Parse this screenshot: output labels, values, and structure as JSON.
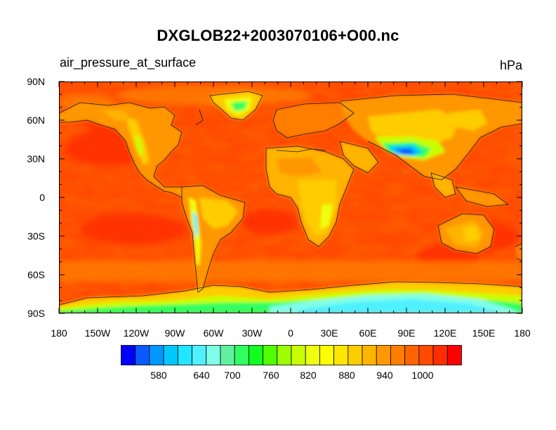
{
  "title": "DXGLOB22+2003070106+O00.nc",
  "left_subtitle": "air_pressure_at_surface",
  "right_subtitle": "hPa",
  "y_tick_labels": [
    "90N",
    "60N",
    "30N",
    "0",
    "30S",
    "60S",
    "90S"
  ],
  "x_tick_labels": [
    "180",
    "150W",
    "120W",
    "90W",
    "60W",
    "30W",
    "0",
    "30E",
    "60E",
    "90E",
    "120E",
    "150E",
    "180"
  ],
  "colorbar": {
    "labels": [
      "580",
      "640",
      "700",
      "760",
      "820",
      "880",
      "940",
      "1000"
    ],
    "colors": [
      "#0000ff",
      "#0a5aff",
      "#0098ff",
      "#00c8ff",
      "#20e6ff",
      "#50f0ff",
      "#80ffe8",
      "#60f0a0",
      "#30ff60",
      "#10ff20",
      "#50ff00",
      "#9aff00",
      "#c8ff00",
      "#eeff10",
      "#ffff00",
      "#ffe600",
      "#ffcc00",
      "#ffb400",
      "#ff9800",
      "#ff7e00",
      "#ff6400",
      "#ff4a00",
      "#ff2e00",
      "#ff0000"
    ]
  },
  "chart_data": {
    "type": "heatmap",
    "title": "DXGLOB22+2003070106+O00.nc",
    "variable": "air_pressure_at_surface",
    "units": "hPa",
    "x_range": [
      -180,
      180
    ],
    "y_range": [
      -90,
      90
    ],
    "levels": [
      520,
      540,
      560,
      580,
      600,
      620,
      640,
      660,
      680,
      700,
      720,
      740,
      760,
      780,
      800,
      820,
      840,
      860,
      880,
      900,
      920,
      940,
      960,
      980,
      1000,
      1020
    ],
    "ocean_color": "#ff4a00"
  }
}
